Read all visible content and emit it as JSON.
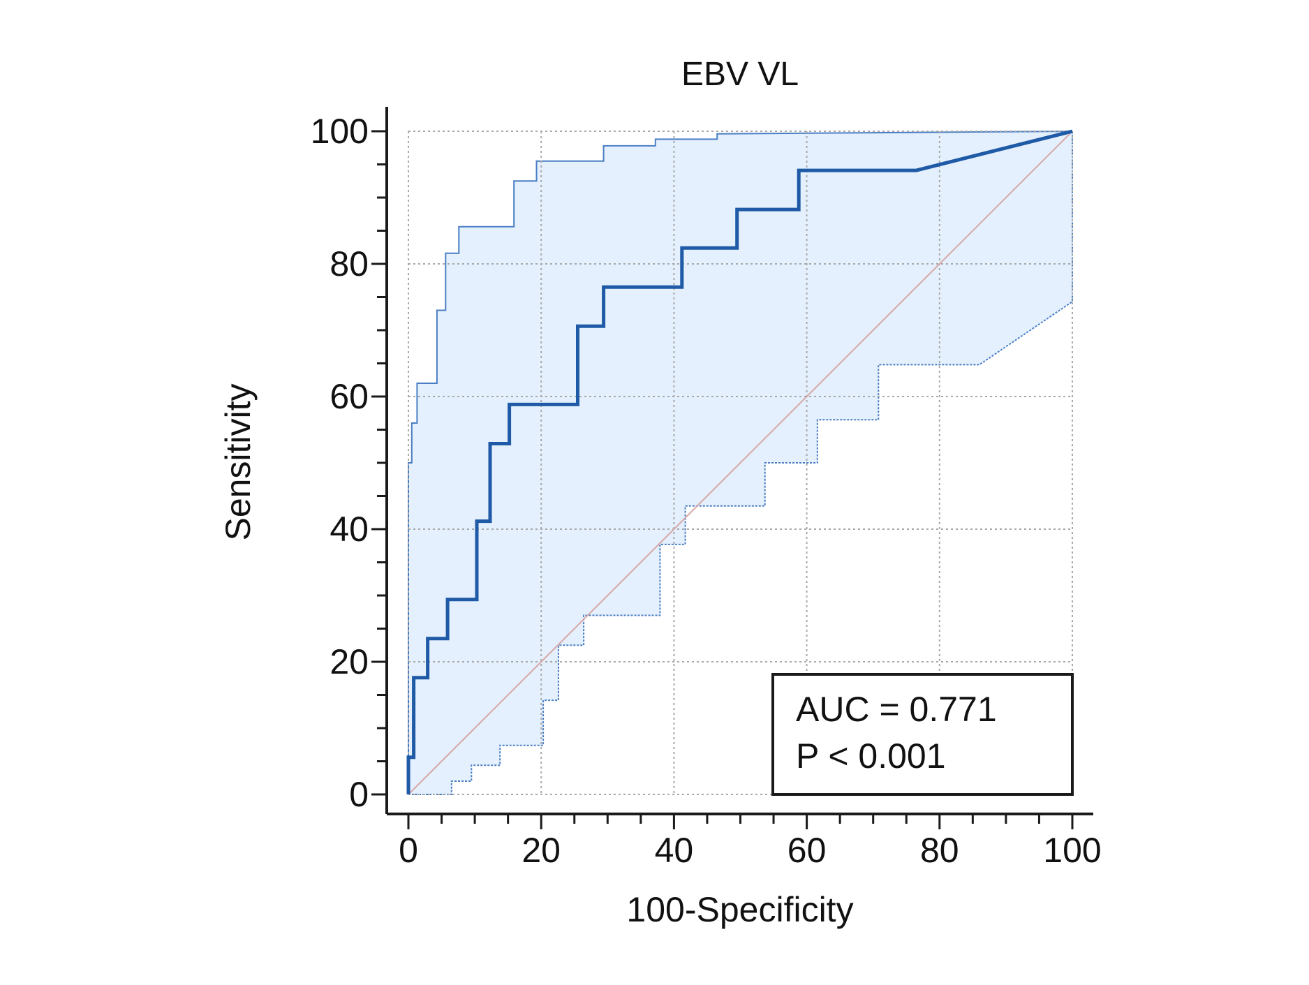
{
  "chart_data": {
    "type": "line",
    "title": "EBV VL",
    "xlabel": "100-Specificity",
    "ylabel": "Sensitivity",
    "xlim": [
      0,
      100
    ],
    "ylim": [
      0,
      100
    ],
    "x_ticks": [
      0,
      20,
      40,
      60,
      80,
      100
    ],
    "y_ticks": [
      0,
      20,
      40,
      60,
      80,
      100
    ],
    "x_tick_labels": [
      "0",
      "20",
      "40",
      "60",
      "80",
      "100"
    ],
    "y_tick_labels": [
      "0",
      "20",
      "40",
      "60",
      "80",
      "100"
    ],
    "grid": true,
    "annotation": {
      "auc_text": "AUC = 0.771",
      "p_text": "P < 0.001",
      "placement": "bottom-right"
    },
    "colors": {
      "roc": "#1f5aa6",
      "ci_line": "#4a7ec4",
      "ci_fill": "#e4f0fd",
      "reference": "#d9a7a7",
      "grid": "#a8a8a8",
      "axis": "#1a1a1a"
    },
    "series": [
      {
        "role": "roc",
        "x": [
          0,
          0,
          0.8,
          0.8,
          2.9,
          2.9,
          5.9,
          5.9,
          10.3,
          10.3,
          12.3,
          12.3,
          15.2,
          15.2,
          25.5,
          25.5,
          29.4,
          29.4,
          41.2,
          41.2,
          49.5,
          49.5,
          58.8,
          58.8,
          76.5,
          100
        ],
        "y": [
          0,
          5.6,
          5.6,
          17.6,
          17.6,
          23.5,
          23.5,
          29.4,
          29.4,
          41.2,
          41.2,
          52.9,
          52.9,
          58.8,
          58.8,
          70.6,
          70.6,
          76.5,
          76.5,
          82.4,
          82.4,
          88.2,
          88.2,
          94.1,
          94.1,
          100
        ]
      },
      {
        "role": "ci-upper",
        "x": [
          0,
          0,
          0.5,
          0.5,
          1.3,
          1.3,
          4.3,
          4.3,
          5.6,
          5.6,
          7.6,
          7.6,
          15.9,
          15.9,
          19.3,
          19.3,
          29.4,
          29.4,
          37.2,
          37.2,
          46.5,
          46.5,
          100
        ],
        "y": [
          0,
          50,
          50,
          56,
          56,
          62,
          62,
          73,
          73,
          81.6,
          81.6,
          85.6,
          85.6,
          92.5,
          92.5,
          95.5,
          95.5,
          97.8,
          97.8,
          98.8,
          98.8,
          99.6,
          100
        ]
      },
      {
        "role": "ci-lower",
        "x": [
          0,
          6.5,
          6.5,
          9.5,
          9.5,
          13.8,
          13.8,
          20.3,
          20.3,
          22.6,
          22.6,
          26.4,
          26.4,
          37.9,
          37.9,
          41.7,
          41.7,
          53.7,
          53.7,
          61.6,
          61.6,
          70.8,
          70.8,
          86,
          100,
          100
        ],
        "y": [
          0,
          0,
          2,
          2,
          4.4,
          4.4,
          7.4,
          7.4,
          14.2,
          14.2,
          22.5,
          22.5,
          27,
          27,
          37.7,
          37.7,
          43.5,
          43.5,
          50,
          50,
          56.5,
          56.5,
          64.8,
          64.8,
          74.3,
          100
        ]
      },
      {
        "role": "reference",
        "x": [
          0,
          100
        ],
        "y": [
          0,
          100
        ]
      }
    ]
  }
}
